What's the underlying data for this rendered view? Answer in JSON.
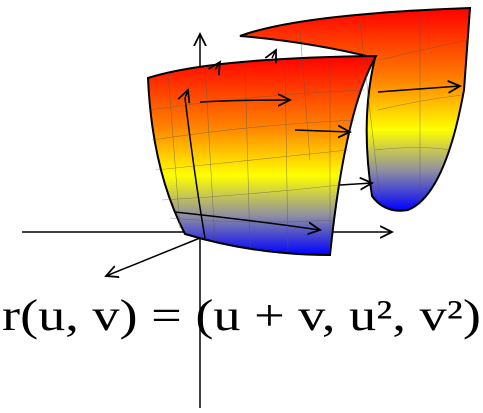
{
  "formula": "r(u, v) = (u + v, u², v²)"
}
